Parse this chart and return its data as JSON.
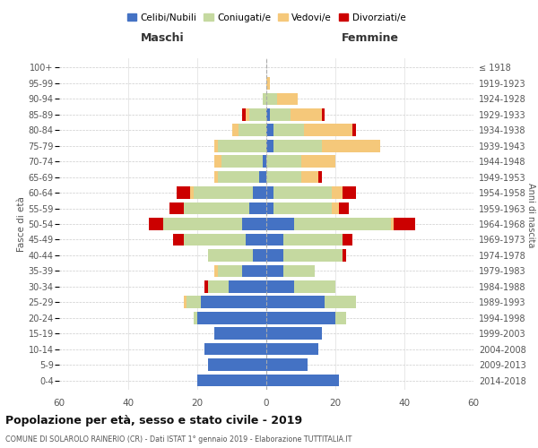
{
  "age_groups": [
    "0-4",
    "5-9",
    "10-14",
    "15-19",
    "20-24",
    "25-29",
    "30-34",
    "35-39",
    "40-44",
    "45-49",
    "50-54",
    "55-59",
    "60-64",
    "65-69",
    "70-74",
    "75-79",
    "80-84",
    "85-89",
    "90-94",
    "95-99",
    "100+"
  ],
  "birth_years": [
    "2014-2018",
    "2009-2013",
    "2004-2008",
    "1999-2003",
    "1994-1998",
    "1989-1993",
    "1984-1988",
    "1979-1983",
    "1974-1978",
    "1969-1973",
    "1964-1968",
    "1959-1963",
    "1954-1958",
    "1949-1953",
    "1944-1948",
    "1939-1943",
    "1934-1938",
    "1929-1933",
    "1924-1928",
    "1919-1923",
    "≤ 1918"
  ],
  "colors": {
    "celibi": "#4472C4",
    "coniugati": "#C5D9A0",
    "vedovi": "#F5C87A",
    "divorziati": "#CC0000"
  },
  "males": {
    "celibi": [
      20,
      17,
      18,
      15,
      20,
      19,
      11,
      7,
      4,
      6,
      7,
      5,
      4,
      2,
      1,
      0,
      0,
      0,
      0,
      0,
      0
    ],
    "coniugati": [
      0,
      0,
      0,
      0,
      1,
      4,
      6,
      7,
      13,
      18,
      23,
      19,
      17,
      12,
      12,
      14,
      8,
      5,
      1,
      0,
      0
    ],
    "vedovi": [
      0,
      0,
      0,
      0,
      0,
      1,
      0,
      1,
      0,
      0,
      0,
      0,
      1,
      1,
      2,
      1,
      2,
      1,
      0,
      0,
      0
    ],
    "divorziati": [
      0,
      0,
      0,
      0,
      0,
      0,
      1,
      0,
      0,
      3,
      4,
      4,
      4,
      0,
      0,
      0,
      0,
      1,
      0,
      0,
      0
    ]
  },
  "females": {
    "celibi": [
      21,
      12,
      15,
      16,
      20,
      17,
      8,
      5,
      5,
      5,
      8,
      2,
      2,
      0,
      0,
      2,
      2,
      1,
      0,
      0,
      0
    ],
    "coniugati": [
      0,
      0,
      0,
      0,
      3,
      9,
      12,
      9,
      17,
      17,
      28,
      17,
      17,
      10,
      10,
      14,
      9,
      6,
      3,
      0,
      0
    ],
    "vedovi": [
      0,
      0,
      0,
      0,
      0,
      0,
      0,
      0,
      0,
      0,
      1,
      2,
      3,
      5,
      10,
      17,
      14,
      9,
      6,
      1,
      0
    ],
    "divorziati": [
      0,
      0,
      0,
      0,
      0,
      0,
      0,
      0,
      1,
      3,
      6,
      3,
      4,
      1,
      0,
      0,
      1,
      1,
      0,
      0,
      0
    ]
  },
  "xlim": 60,
  "title": "Popolazione per età, sesso e stato civile - 2019",
  "subtitle": "COMUNE DI SOLAROLO RAINERIO (CR) - Dati ISTAT 1° gennaio 2019 - Elaborazione TUTTITALIA.IT",
  "ylabel_left": "Fasce di età",
  "ylabel_right": "Anni di nascita",
  "maschi_label": "Maschi",
  "femmine_label": "Femmine",
  "legend_labels": [
    "Celibi/Nubili",
    "Coniugati/e",
    "Vedovi/e",
    "Divorziati/e"
  ],
  "background_color": "#ffffff"
}
